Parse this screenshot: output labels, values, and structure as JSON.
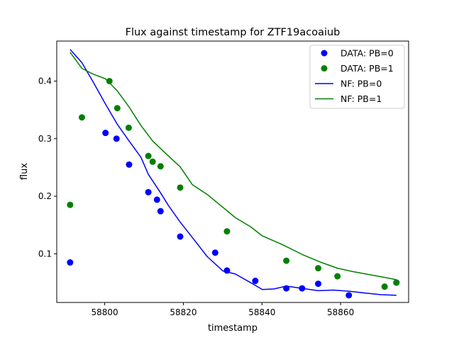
{
  "chart_data": {
    "type": "scatter",
    "title": "Flux against timestamp for ZTF19acoaiub",
    "xlabel": "timestamp",
    "ylabel": "flux",
    "xlim": [
      58787.8,
      58877.3
    ],
    "ylim": [
      0.0155,
      0.4695
    ],
    "xticks": [
      58800,
      58820,
      58840,
      58860
    ],
    "yticks": [
      0.1,
      0.2,
      0.3,
      0.4
    ],
    "grid": false,
    "legend_position": "top-right",
    "scatter_series": [
      {
        "name": "DATA: PB=0",
        "color": "#0000ff",
        "points": [
          [
            58791.2,
            0.085
          ],
          [
            58800.2,
            0.31
          ],
          [
            58803.0,
            0.3
          ],
          [
            58806.2,
            0.255
          ],
          [
            58811.1,
            0.207
          ],
          [
            58813.3,
            0.194
          ],
          [
            58814.2,
            0.174
          ],
          [
            58819.2,
            0.13
          ],
          [
            58828.1,
            0.102
          ],
          [
            58831.1,
            0.071
          ],
          [
            58838.3,
            0.053
          ],
          [
            58846.2,
            0.04
          ],
          [
            58850.2,
            0.04
          ],
          [
            58854.3,
            0.048
          ],
          [
            58862.1,
            0.028
          ],
          [
            58874.2,
            0.05
          ]
        ]
      },
      {
        "name": "DATA: PB=1",
        "color": "#008000",
        "points": [
          [
            58791.2,
            0.185
          ],
          [
            58794.2,
            0.337
          ],
          [
            58801.2,
            0.4
          ],
          [
            58803.2,
            0.353
          ],
          [
            58806.1,
            0.319
          ],
          [
            58811.1,
            0.27
          ],
          [
            58812.2,
            0.26
          ],
          [
            58814.2,
            0.252
          ],
          [
            58819.2,
            0.215
          ],
          [
            58831.1,
            0.139
          ],
          [
            58846.2,
            0.088
          ],
          [
            58854.3,
            0.075
          ],
          [
            58859.2,
            0.061
          ],
          [
            58871.2,
            0.043
          ],
          [
            58874.2,
            0.05
          ]
        ]
      }
    ],
    "line_series": [
      {
        "name": "NF: PB=0",
        "color": "#0000ff",
        "points": [
          [
            58791.2,
            0.455
          ],
          [
            58794.2,
            0.432
          ],
          [
            58797.1,
            0.398
          ],
          [
            58800.2,
            0.36
          ],
          [
            58803.2,
            0.325
          ],
          [
            58806.2,
            0.296
          ],
          [
            58809.2,
            0.268
          ],
          [
            58811.1,
            0.238
          ],
          [
            58814.2,
            0.206
          ],
          [
            58816.2,
            0.184
          ],
          [
            58819.2,
            0.155
          ],
          [
            58822.1,
            0.13
          ],
          [
            58826.1,
            0.095
          ],
          [
            58830.1,
            0.07
          ],
          [
            58833.2,
            0.065
          ],
          [
            58837.1,
            0.05
          ],
          [
            58840.1,
            0.038
          ],
          [
            58843.1,
            0.039
          ],
          [
            58846.2,
            0.044
          ],
          [
            58850.2,
            0.04
          ],
          [
            58854.3,
            0.036
          ],
          [
            58858.1,
            0.037
          ],
          [
            58862.1,
            0.035
          ],
          [
            58866.1,
            0.032
          ],
          [
            58870.2,
            0.029
          ],
          [
            58874.2,
            0.028
          ]
        ]
      },
      {
        "name": "NF: PB=1",
        "color": "#008000",
        "points": [
          [
            58791.2,
            0.45
          ],
          [
            58794.2,
            0.422
          ],
          [
            58797.1,
            0.412
          ],
          [
            58800.2,
            0.404
          ],
          [
            58803.2,
            0.383
          ],
          [
            58806.2,
            0.355
          ],
          [
            58809.2,
            0.323
          ],
          [
            58812.2,
            0.296
          ],
          [
            58816.2,
            0.27
          ],
          [
            58819.2,
            0.251
          ],
          [
            58822.3,
            0.22
          ],
          [
            58826.1,
            0.203
          ],
          [
            58830.2,
            0.18
          ],
          [
            58833.2,
            0.163
          ],
          [
            58837.1,
            0.147
          ],
          [
            58840.1,
            0.131
          ],
          [
            58845.2,
            0.116
          ],
          [
            58850.2,
            0.099
          ],
          [
            58855.1,
            0.085
          ],
          [
            58859.2,
            0.075
          ],
          [
            58863.2,
            0.069
          ],
          [
            58867.2,
            0.064
          ],
          [
            58871.2,
            0.059
          ],
          [
            58874.2,
            0.055
          ]
        ]
      }
    ],
    "legend": [
      "DATA: PB=0",
      "DATA: PB=1",
      "NF: PB=0",
      "NF: PB=1"
    ]
  }
}
